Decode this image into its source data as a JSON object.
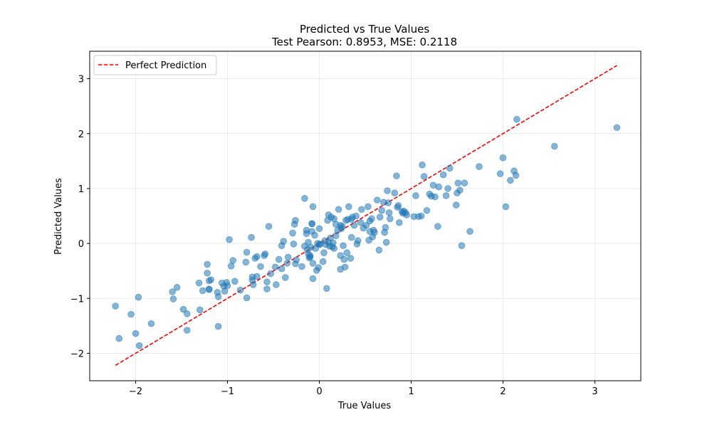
{
  "chart_data": {
    "type": "scatter",
    "title": "Predicted vs True Values",
    "subtitle": "Test Pearson: 0.8953, MSE: 0.2118",
    "xlabel": "True Values",
    "ylabel": "Predicted Values",
    "xlim": [
      -2.5,
      3.5
    ],
    "ylim": [
      -2.5,
      3.5
    ],
    "xticks": [
      -2,
      -1,
      0,
      1,
      2,
      3
    ],
    "yticks": [
      -2,
      -1,
      0,
      1,
      2,
      3
    ],
    "xtick_labels": [
      "−2",
      "−1",
      "0",
      "1",
      "2",
      "3"
    ],
    "ytick_labels": [
      "−2",
      "−1",
      "0",
      "1",
      "2",
      "3"
    ],
    "grid": true,
    "legend_position": "top-left",
    "legend": [
      {
        "label": "Perfect Prediction",
        "style": "dashed",
        "color": "#ff0000"
      }
    ],
    "reference_line": {
      "name": "Perfect Prediction",
      "x": [
        -2.22,
        3.24
      ],
      "y": [
        -2.22,
        3.24
      ],
      "color": "#ff0000",
      "style": "dashed"
    },
    "series": [
      {
        "color": "#1f77b4",
        "opacity": 0.55,
        "points": [
          [
            -2.22,
            -1.14
          ],
          [
            -2.18,
            -1.73
          ],
          [
            -2.05,
            -1.29
          ],
          [
            -2.0,
            -1.64
          ],
          [
            -1.97,
            -0.98
          ],
          [
            -1.96,
            -1.86
          ],
          [
            -1.83,
            -1.46
          ],
          [
            -1.6,
            -0.88
          ],
          [
            -1.59,
            -1.01
          ],
          [
            -1.55,
            -0.8
          ],
          [
            -1.48,
            -1.2
          ],
          [
            -1.44,
            -1.28
          ],
          [
            -1.44,
            -1.58
          ],
          [
            -1.31,
            -0.72
          ],
          [
            -1.3,
            -1.21
          ],
          [
            -1.27,
            -0.86
          ],
          [
            -1.22,
            -0.38
          ],
          [
            -1.22,
            -0.54
          ],
          [
            -1.2,
            -0.68
          ],
          [
            -1.2,
            -0.83
          ],
          [
            -1.2,
            -0.84
          ],
          [
            -1.18,
            -0.66
          ],
          [
            -1.11,
            -0.89
          ],
          [
            -1.1,
            -0.97
          ],
          [
            -1.1,
            -1.51
          ],
          [
            -1.06,
            -0.72
          ],
          [
            -1.04,
            -0.78
          ],
          [
            -1.03,
            -0.87
          ],
          [
            -1.01,
            -0.71
          ],
          [
            -1.0,
            -0.77
          ],
          [
            -0.98,
            0.07
          ],
          [
            -0.96,
            -0.41
          ],
          [
            -0.94,
            -0.31
          ],
          [
            -0.92,
            -0.69
          ],
          [
            -0.86,
            -0.85
          ],
          [
            -0.8,
            -0.34
          ],
          [
            -0.79,
            -0.16
          ],
          [
            -0.79,
            -0.99
          ],
          [
            -0.74,
            0.11
          ],
          [
            -0.73,
            -0.61
          ],
          [
            -0.73,
            -0.67
          ],
          [
            -0.72,
            -0.75
          ],
          [
            -0.7,
            -0.27
          ],
          [
            -0.68,
            -0.24
          ],
          [
            -0.68,
            -0.6
          ],
          [
            -0.64,
            -0.42
          ],
          [
            -0.6,
            -0.22
          ],
          [
            -0.59,
            -0.19
          ],
          [
            -0.57,
            -0.7
          ],
          [
            -0.57,
            -0.83
          ],
          [
            -0.55,
            0.31
          ],
          [
            -0.53,
            -0.55
          ],
          [
            -0.48,
            -0.43
          ],
          [
            -0.47,
            -0.75
          ],
          [
            -0.44,
            -0.29
          ],
          [
            -0.41,
            -0.46
          ],
          [
            -0.41,
            -0.04
          ],
          [
            -0.39,
            0.04
          ],
          [
            -0.37,
            -0.62
          ],
          [
            -0.35,
            -0.36
          ],
          [
            -0.34,
            -0.25
          ],
          [
            -0.29,
            0.19
          ],
          [
            -0.28,
            -0.01
          ],
          [
            -0.27,
            0.35
          ],
          [
            -0.26,
            0.42
          ],
          [
            -0.26,
            -0.37
          ],
          [
            -0.25,
            -0.3
          ],
          [
            -0.19,
            -0.42
          ],
          [
            -0.16,
            0.82
          ],
          [
            -0.16,
            -0.05
          ],
          [
            -0.14,
            0.18
          ],
          [
            -0.14,
            0.24
          ],
          [
            -0.13,
            -0.11
          ],
          [
            -0.12,
            0.02
          ],
          [
            -0.12,
            -0.19
          ],
          [
            -0.11,
            -0.26
          ],
          [
            -0.1,
            -0.22
          ],
          [
            -0.1,
            -0.25
          ],
          [
            -0.09,
            -0.07
          ],
          [
            -0.08,
            0.36
          ],
          [
            -0.08,
            0.36
          ],
          [
            -0.08,
            0.22
          ],
          [
            -0.07,
            -0.36
          ],
          [
            -0.07,
            -0.64
          ],
          [
            -0.07,
            0.67
          ],
          [
            -0.05,
            0.15
          ],
          [
            -0.04,
            -0.09
          ],
          [
            -0.03,
            -0.49
          ],
          [
            -0.02,
            -0.0
          ],
          [
            -0.01,
            -0.44
          ],
          [
            0.0,
            0.27
          ],
          [
            0.0,
            -0.02
          ],
          [
            0.01,
            -0.01
          ],
          [
            0.04,
            -0.33
          ],
          [
            0.05,
            -0.17
          ],
          [
            0.06,
            0.05
          ],
          [
            0.07,
            -0.02
          ],
          [
            0.08,
            -0.82
          ],
          [
            0.09,
            0.42
          ],
          [
            0.1,
            0.52
          ],
          [
            0.1,
            0.02
          ],
          [
            0.11,
            -0.05
          ],
          [
            0.12,
            0.1
          ],
          [
            0.13,
            0.48
          ],
          [
            0.14,
            -0.06
          ],
          [
            0.15,
            0.01
          ],
          [
            0.16,
            0.45
          ],
          [
            0.16,
            -0.09
          ],
          [
            0.18,
            0.14
          ],
          [
            0.18,
            0.35
          ],
          [
            0.2,
            0.24
          ],
          [
            0.21,
            0.62
          ],
          [
            0.23,
            -0.22
          ],
          [
            0.23,
            0.33
          ],
          [
            0.23,
            -0.47
          ],
          [
            0.24,
            0.27
          ],
          [
            0.25,
            0.31
          ],
          [
            0.26,
            -0.04
          ],
          [
            0.27,
            -0.29
          ],
          [
            0.28,
            -0.43
          ],
          [
            0.29,
            0.42
          ],
          [
            0.3,
            -0.17
          ],
          [
            0.31,
            0.44
          ],
          [
            0.32,
            0.67
          ],
          [
            0.34,
            -0.27
          ],
          [
            0.35,
            0.44
          ],
          [
            0.35,
            0.11
          ],
          [
            0.36,
            0.48
          ],
          [
            0.38,
            0.33
          ],
          [
            0.4,
            0.5
          ],
          [
            0.41,
            -0.01
          ],
          [
            0.42,
            0.05
          ],
          [
            0.45,
            0.38
          ],
          [
            0.46,
            0.62
          ],
          [
            0.48,
            0.28
          ],
          [
            0.51,
            0.33
          ],
          [
            0.53,
            0.67
          ],
          [
            0.54,
            0.06
          ],
          [
            0.55,
            0.22
          ],
          [
            0.55,
            0.41
          ],
          [
            0.57,
            0.45
          ],
          [
            0.58,
            0.12
          ],
          [
            0.59,
            0.24
          ],
          [
            0.6,
            0.2
          ],
          [
            0.63,
            0.79
          ],
          [
            0.65,
            -0.12
          ],
          [
            0.66,
            0.48
          ],
          [
            0.68,
            0.6
          ],
          [
            0.7,
            0.75
          ],
          [
            0.71,
            0.2
          ],
          [
            0.72,
            0.29
          ],
          [
            0.73,
            0.02
          ],
          [
            0.74,
            0.96
          ],
          [
            0.75,
            0.74
          ],
          [
            0.76,
            0.56
          ],
          [
            0.77,
            0.45
          ],
          [
            0.82,
            0.92
          ],
          [
            0.84,
            1.23
          ],
          [
            0.85,
            0.66
          ],
          [
            0.86,
            0.69
          ],
          [
            0.87,
            0.38
          ],
          [
            0.9,
            0.58
          ],
          [
            0.91,
            0.55
          ],
          [
            0.92,
            0.59
          ],
          [
            0.94,
            0.56
          ],
          [
            0.95,
            0.52
          ],
          [
            1.03,
            0.49
          ],
          [
            1.05,
            0.87
          ],
          [
            1.08,
            0.49
          ],
          [
            1.11,
            0.5
          ],
          [
            1.12,
            1.43
          ],
          [
            1.14,
            1.22
          ],
          [
            1.17,
            0.6
          ],
          [
            1.2,
            0.9
          ],
          [
            1.22,
            0.86
          ],
          [
            1.24,
            1.06
          ],
          [
            1.26,
            0.85
          ],
          [
            1.29,
            0.31
          ],
          [
            1.3,
            1.03
          ],
          [
            1.35,
            1.25
          ],
          [
            1.38,
            0.87
          ],
          [
            1.4,
            1.0
          ],
          [
            1.42,
            1.37
          ],
          [
            1.49,
            0.7
          ],
          [
            1.5,
            0.92
          ],
          [
            1.51,
            1.1
          ],
          [
            1.53,
            0.97
          ],
          [
            1.55,
            -0.04
          ],
          [
            1.58,
            1.1
          ],
          [
            1.64,
            0.22
          ],
          [
            1.74,
            1.4
          ],
          [
            1.97,
            1.27
          ],
          [
            2.0,
            1.56
          ],
          [
            2.03,
            0.67
          ],
          [
            2.08,
            1.15
          ],
          [
            2.12,
            1.32
          ],
          [
            2.14,
            1.24
          ],
          [
            2.15,
            2.26
          ],
          [
            2.56,
            1.77
          ],
          [
            3.24,
            2.11
          ]
        ]
      }
    ]
  }
}
